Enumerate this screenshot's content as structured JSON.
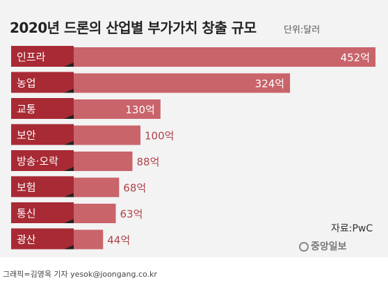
{
  "chart_data": {
    "type": "bar",
    "orientation": "horizontal",
    "title": "2020년 드론의 산업별 부가가치 창출 규모",
    "unit_label": "단위:달러",
    "categories": [
      "인프라",
      "농업",
      "교통",
      "보안",
      "방송·오락",
      "보험",
      "통신",
      "광산"
    ],
    "values": [
      452,
      324,
      130,
      100,
      88,
      68,
      63,
      44
    ],
    "value_labels": [
      "452억",
      "324억",
      "130억",
      "100억",
      "88억",
      "68억",
      "63억",
      "44억"
    ],
    "xlim": [
      0,
      452
    ],
    "colors": {
      "label_box": "#a82a34",
      "bar": "#c9646b",
      "value_text_inside": "#ffffff",
      "value_text_outside": "#b0414a"
    }
  },
  "source": "자료:PwC",
  "logo_text": "중앙일보",
  "credit": "그래픽=김영옥 기자 yesok@joongang.co.kr"
}
